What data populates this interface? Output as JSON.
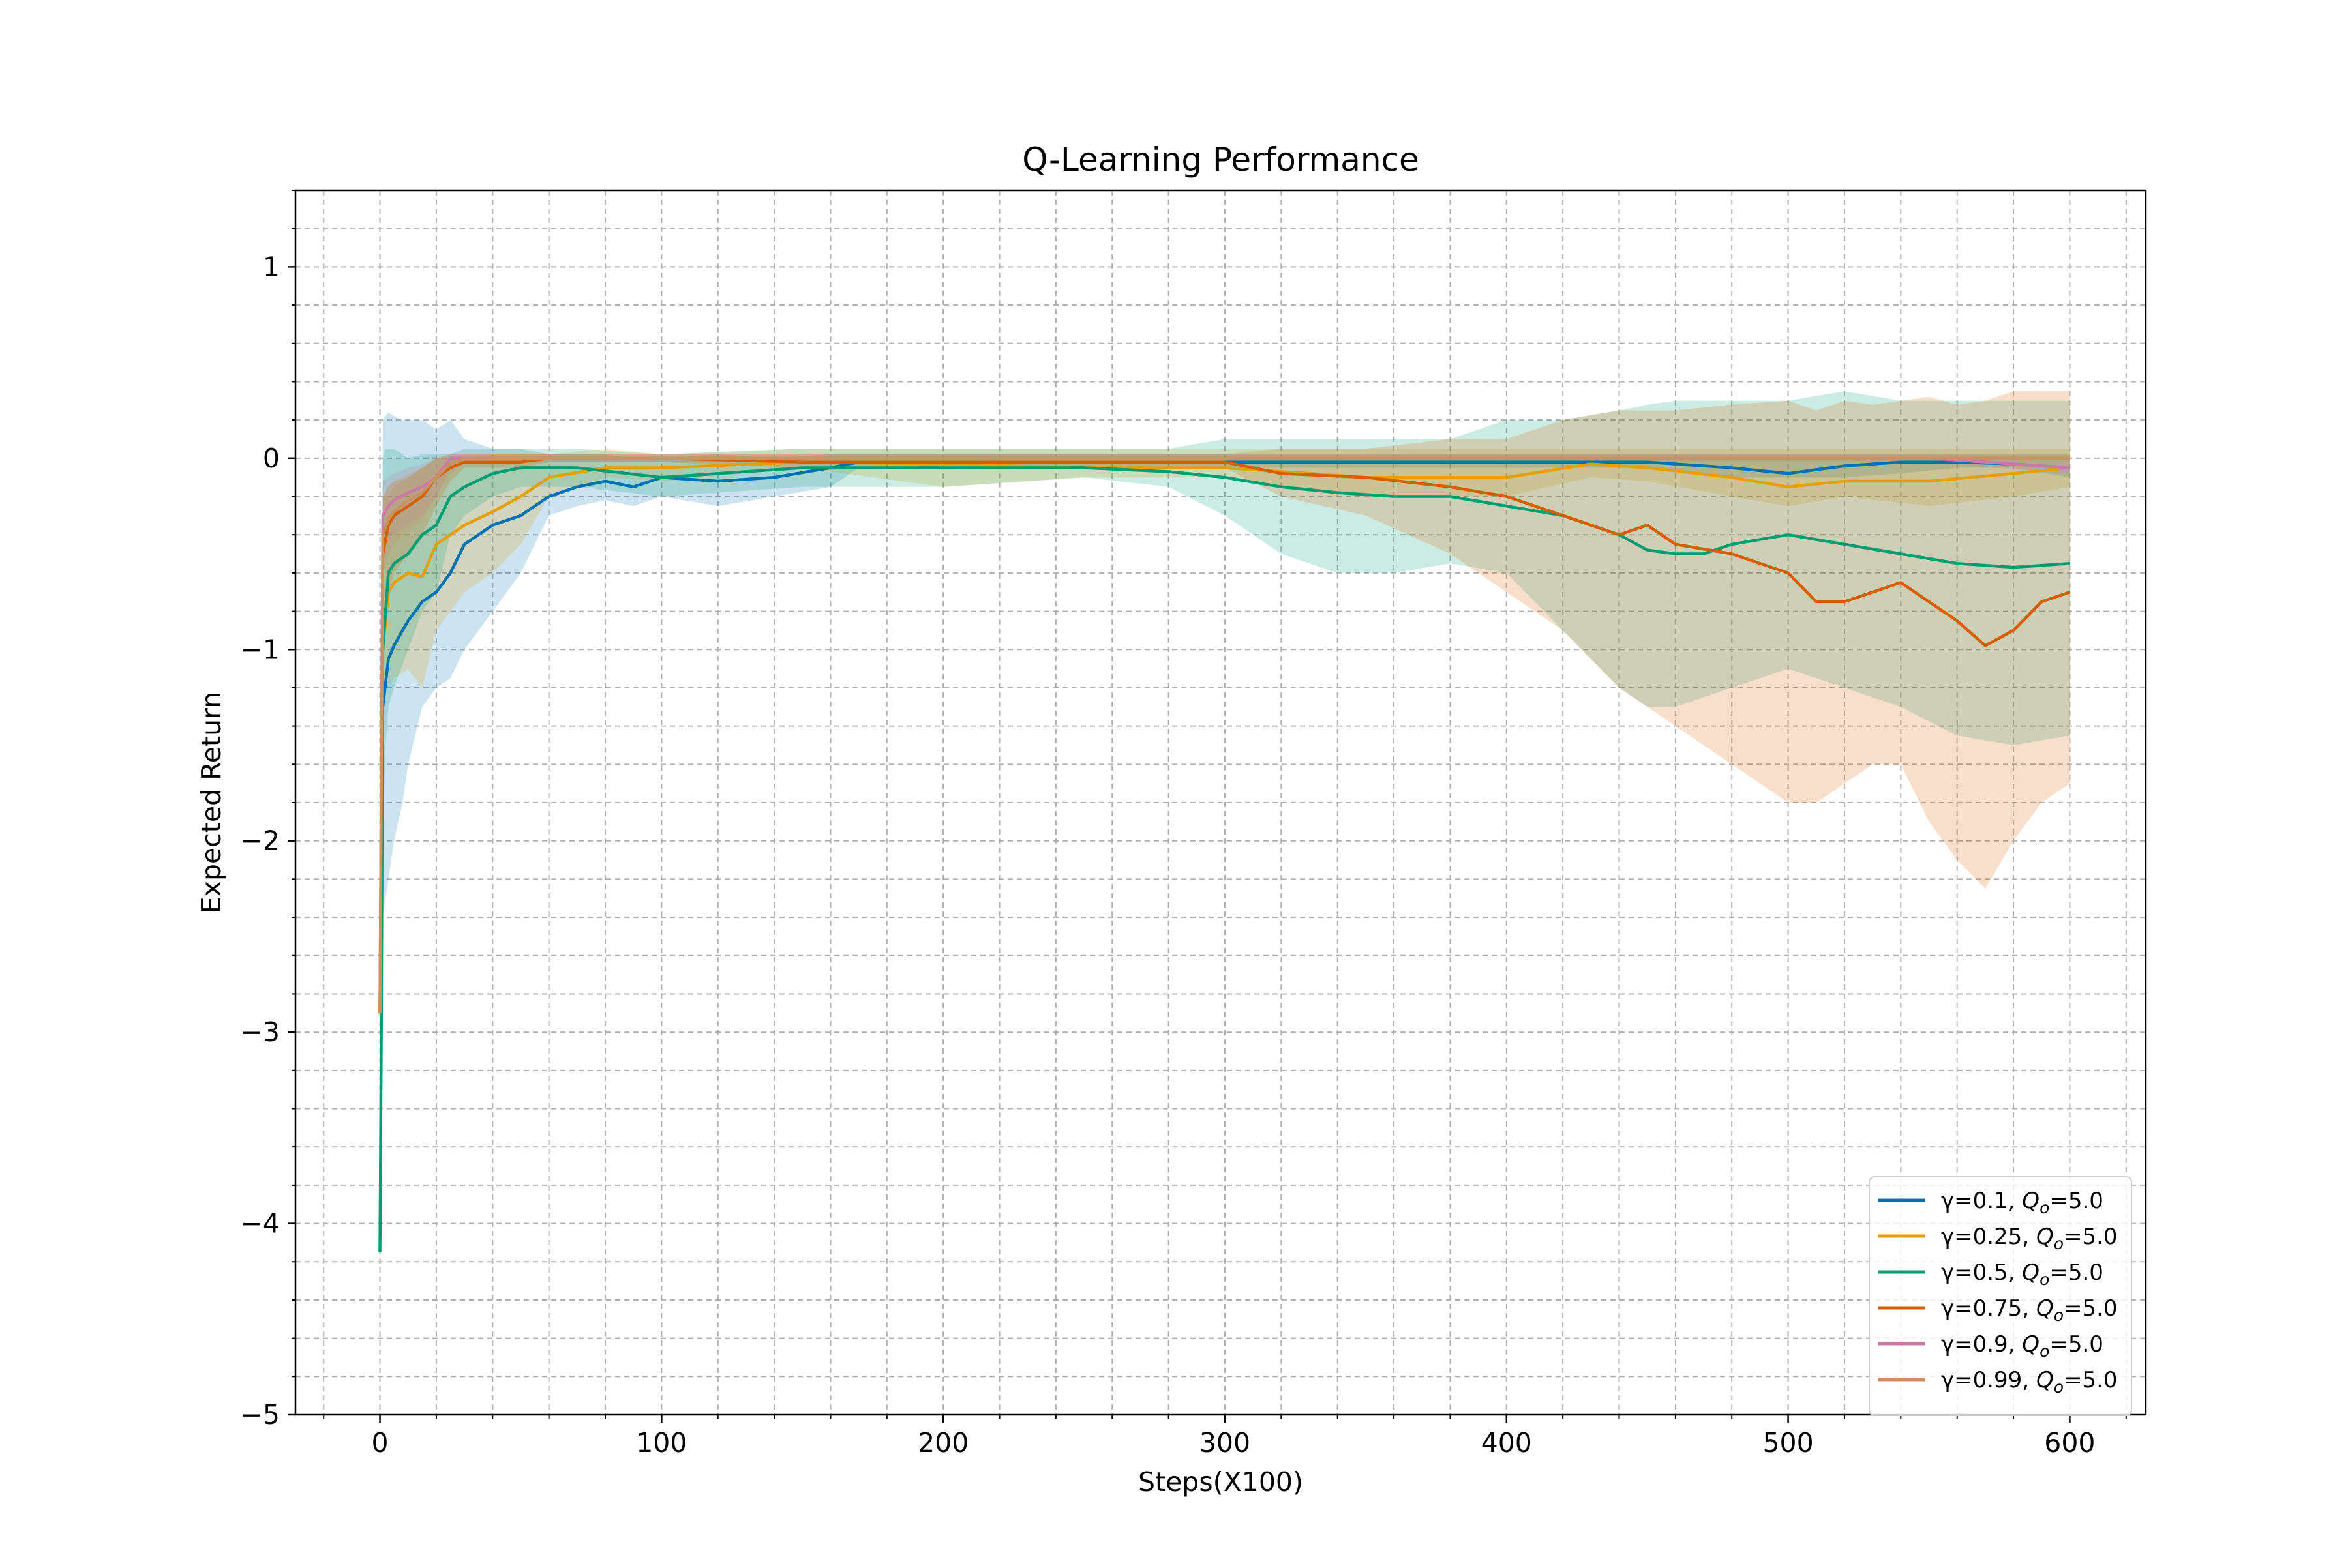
{
  "chart_data": {
    "type": "line",
    "title": "Q-Learning Performance",
    "xlabel": "Steps(X100)",
    "ylabel": "Expected Return",
    "xlim": [
      -30,
      627
    ],
    "ylim": [
      -5,
      1.4
    ],
    "xticks": [
      0,
      100,
      200,
      300,
      400,
      500,
      600
    ],
    "yticks": [
      1,
      0,
      -1,
      -2,
      -3,
      -4,
      -5
    ],
    "xtick_labels": [
      "0",
      "100",
      "200",
      "300",
      "400",
      "500",
      "600"
    ],
    "ytick_labels": [
      "1",
      "0",
      "−1",
      "−2",
      "−3",
      "−4",
      "−5"
    ],
    "grid": true,
    "minor_grid": true,
    "legend_position": "lower right",
    "series": [
      {
        "name": "γ=0.1, Qo=5.0",
        "legend_prefix": "γ=0.1, ",
        "legend_q": "Q",
        "legend_sub": "o",
        "legend_suffix": "=5.0",
        "color": "#0072b2",
        "x": [
          0,
          1,
          3,
          5,
          8,
          10,
          15,
          20,
          25,
          30,
          40,
          50,
          60,
          70,
          80,
          90,
          100,
          120,
          140,
          160,
          170,
          180,
          200,
          250,
          300,
          350,
          400,
          450,
          480,
          500,
          520,
          540,
          560,
          580,
          600
        ],
        "y": [
          -2.9,
          -1.3,
          -1.05,
          -0.98,
          -0.9,
          -0.85,
          -0.75,
          -0.7,
          -0.6,
          -0.45,
          -0.35,
          -0.3,
          -0.2,
          -0.15,
          -0.12,
          -0.15,
          -0.1,
          -0.12,
          -0.1,
          -0.05,
          -0.02,
          -0.02,
          -0.02,
          -0.02,
          -0.02,
          -0.02,
          -0.02,
          -0.02,
          -0.05,
          -0.08,
          -0.04,
          -0.02,
          -0.02,
          -0.03,
          -0.05
        ],
        "lower": [
          -2.9,
          -2.4,
          -2.2,
          -2.0,
          -1.8,
          -1.6,
          -1.3,
          -1.2,
          -1.15,
          -1.0,
          -0.8,
          -0.6,
          -0.3,
          -0.25,
          -0.22,
          -0.25,
          -0.2,
          -0.25,
          -0.2,
          -0.15,
          -0.05,
          -0.05,
          -0.05,
          -0.05,
          -0.05,
          -0.05,
          -0.05,
          -0.05,
          -0.1,
          -0.1,
          -0.1,
          -0.08,
          -0.05,
          -0.05,
          -0.1
        ],
        "upper": [
          -2.9,
          0.2,
          0.24,
          0.22,
          0.2,
          0.2,
          0.2,
          0.15,
          0.2,
          0.1,
          0.05,
          0.05,
          0.02,
          0.02,
          0.02,
          0.0,
          0.0,
          0.02,
          0.0,
          0.02,
          0.02,
          0.02,
          0.02,
          0.02,
          0.02,
          0.02,
          0.02,
          0.02,
          0.02,
          0.02,
          0.02,
          0.02,
          0.02,
          0.02,
          0.02
        ]
      },
      {
        "name": "γ=0.25, Qo=5.0",
        "legend_prefix": "γ=0.25, ",
        "legend_q": "Q",
        "legend_sub": "o",
        "legend_suffix": "=5.0",
        "color": "#e69f00",
        "x": [
          0,
          1,
          3,
          5,
          10,
          15,
          20,
          30,
          40,
          50,
          60,
          80,
          100,
          150,
          200,
          250,
          300,
          350,
          400,
          430,
          450,
          480,
          500,
          520,
          550,
          580,
          600
        ],
        "y": [
          -2.9,
          -1.0,
          -0.7,
          -0.65,
          -0.6,
          -0.62,
          -0.45,
          -0.35,
          -0.28,
          -0.2,
          -0.1,
          -0.05,
          -0.05,
          -0.02,
          -0.03,
          -0.05,
          -0.05,
          -0.1,
          -0.1,
          -0.03,
          -0.05,
          -0.1,
          -0.15,
          -0.12,
          -0.12,
          -0.08,
          -0.05
        ],
        "lower": [
          -2.9,
          -1.2,
          -1.2,
          -1.15,
          -1.1,
          -1.2,
          -0.9,
          -0.7,
          -0.6,
          -0.45,
          -0.2,
          -0.1,
          -0.12,
          -0.05,
          -0.15,
          -0.1,
          -0.1,
          -0.2,
          -0.2,
          -0.1,
          -0.12,
          -0.2,
          -0.25,
          -0.2,
          -0.25,
          -0.2,
          -0.15
        ],
        "upper": [
          -2.9,
          -0.2,
          -0.2,
          -0.15,
          -0.1,
          -0.05,
          0.0,
          0.0,
          0.02,
          0.02,
          0.02,
          0.05,
          0.02,
          0.05,
          0.05,
          0.05,
          0.05,
          0.05,
          0.05,
          0.05,
          0.05,
          0.05,
          0.05,
          0.05,
          0.05,
          0.05,
          0.05
        ]
      },
      {
        "name": "γ=0.5, Qo=5.0",
        "legend_prefix": "γ=0.5, ",
        "legend_q": "Q",
        "legend_sub": "o",
        "legend_suffix": "=5.0",
        "color": "#009e73",
        "x": [
          0,
          0.5,
          1,
          2,
          3,
          5,
          10,
          15,
          20,
          25,
          30,
          40,
          50,
          70,
          100,
          150,
          200,
          250,
          280,
          300,
          320,
          340,
          360,
          380,
          400,
          420,
          440,
          450,
          460,
          470,
          480,
          500,
          520,
          540,
          560,
          580,
          600
        ],
        "y": [
          -4.15,
          -2.95,
          -1.0,
          -0.8,
          -0.6,
          -0.55,
          -0.5,
          -0.4,
          -0.35,
          -0.2,
          -0.15,
          -0.08,
          -0.05,
          -0.05,
          -0.1,
          -0.05,
          -0.05,
          -0.05,
          -0.07,
          -0.1,
          -0.15,
          -0.18,
          -0.2,
          -0.2,
          -0.25,
          -0.3,
          -0.4,
          -0.48,
          -0.5,
          -0.5,
          -0.45,
          -0.4,
          -0.45,
          -0.5,
          -0.55,
          -0.57,
          -0.55
        ],
        "lower": [
          -4.15,
          -2.95,
          -2.0,
          -1.5,
          -1.3,
          -1.2,
          -1.0,
          -0.8,
          -0.7,
          -0.4,
          -0.3,
          -0.2,
          -0.15,
          -0.15,
          -0.2,
          -0.15,
          -0.15,
          -0.1,
          -0.15,
          -0.3,
          -0.5,
          -0.6,
          -0.6,
          -0.55,
          -0.6,
          -0.9,
          -1.2,
          -1.3,
          -1.3,
          -1.25,
          -1.2,
          -1.1,
          -1.2,
          -1.3,
          -1.45,
          -1.5,
          -1.45
        ],
        "upper": [
          -4.15,
          -2.95,
          0.0,
          0.05,
          0.05,
          0.05,
          0.0,
          0.02,
          0.02,
          0.02,
          0.05,
          0.05,
          0.05,
          0.05,
          0.02,
          0.05,
          0.05,
          0.05,
          0.05,
          0.1,
          0.1,
          0.1,
          0.1,
          0.1,
          0.2,
          0.2,
          0.25,
          0.28,
          0.3,
          0.3,
          0.3,
          0.3,
          0.35,
          0.3,
          0.3,
          0.3,
          0.3
        ]
      },
      {
        "name": "γ=0.75, Qo=5.0",
        "legend_prefix": "γ=0.75, ",
        "legend_q": "Q",
        "legend_sub": "o",
        "legend_suffix": "=5.0",
        "color": "#d55e00",
        "x": [
          0,
          1,
          3,
          5,
          10,
          15,
          20,
          25,
          30,
          40,
          50,
          60,
          100,
          150,
          200,
          250,
          300,
          320,
          350,
          380,
          400,
          420,
          440,
          450,
          460,
          480,
          500,
          510,
          520,
          530,
          540,
          550,
          560,
          570,
          580,
          590,
          600
        ],
        "y": [
          -2.9,
          -0.5,
          -0.35,
          -0.3,
          -0.25,
          -0.2,
          -0.1,
          -0.05,
          -0.02,
          -0.02,
          -0.02,
          0.0,
          0.0,
          -0.02,
          -0.02,
          -0.02,
          -0.02,
          -0.08,
          -0.1,
          -0.15,
          -0.2,
          -0.3,
          -0.4,
          -0.35,
          -0.45,
          -0.5,
          -0.6,
          -0.75,
          -0.75,
          -0.7,
          -0.65,
          -0.75,
          -0.85,
          -0.98,
          -0.9,
          -0.75,
          -0.7
        ],
        "lower": [
          -2.9,
          -0.9,
          -0.7,
          -0.6,
          -0.5,
          -0.4,
          -0.25,
          -0.12,
          -0.05,
          -0.05,
          -0.05,
          -0.02,
          -0.02,
          -0.05,
          -0.05,
          -0.05,
          -0.05,
          -0.2,
          -0.3,
          -0.5,
          -0.7,
          -0.9,
          -1.2,
          -1.3,
          -1.4,
          -1.6,
          -1.8,
          -1.8,
          -1.7,
          -1.6,
          -1.6,
          -1.9,
          -2.1,
          -2.25,
          -2.0,
          -1.8,
          -1.7
        ],
        "upper": [
          -2.9,
          -0.2,
          -0.15,
          -0.12,
          -0.1,
          -0.05,
          0.0,
          0.02,
          0.02,
          0.02,
          0.02,
          0.02,
          0.02,
          0.02,
          0.02,
          0.02,
          0.02,
          0.05,
          0.05,
          0.1,
          0.1,
          0.2,
          0.25,
          0.25,
          0.25,
          0.28,
          0.3,
          0.25,
          0.3,
          0.28,
          0.3,
          0.32,
          0.28,
          0.3,
          0.35,
          0.35,
          0.35
        ]
      },
      {
        "name": "γ=0.9, Qo=5.0",
        "legend_prefix": "γ=0.9, ",
        "legend_q": "Q",
        "legend_sub": "o",
        "legend_suffix": "=5.0",
        "color": "#cc79a7",
        "x": [
          0,
          1,
          3,
          5,
          10,
          15,
          20,
          25,
          30,
          50,
          100,
          200,
          300,
          400,
          500,
          550,
          580,
          600
        ],
        "y": [
          -2.9,
          -0.3,
          -0.25,
          -0.22,
          -0.18,
          -0.15,
          -0.1,
          0.0,
          0.0,
          0.0,
          0.0,
          0.0,
          0.0,
          0.0,
          0.0,
          0.0,
          -0.03,
          -0.05
        ],
        "lower": [
          -2.9,
          -0.5,
          -0.45,
          -0.4,
          -0.35,
          -0.3,
          -0.2,
          -0.05,
          -0.02,
          -0.02,
          -0.02,
          -0.02,
          -0.02,
          -0.02,
          -0.02,
          -0.02,
          -0.06,
          -0.08
        ],
        "upper": [
          -2.9,
          -0.12,
          -0.1,
          -0.08,
          -0.05,
          -0.03,
          0.0,
          0.02,
          0.02,
          0.02,
          0.02,
          0.02,
          0.02,
          0.02,
          0.02,
          0.02,
          0.01,
          0.0
        ]
      },
      {
        "name": "γ=0.99, Qo=5.0",
        "legend_prefix": "γ=0.99, ",
        "legend_q": "Q",
        "legend_sub": "o",
        "legend_suffix": "=5.0",
        "color": "#ca9161",
        "x": [
          0,
          1,
          3,
          5,
          10,
          15,
          20,
          25,
          30,
          50,
          100,
          200,
          300,
          400,
          500,
          600
        ],
        "y": [
          -2.9,
          -0.4,
          -0.32,
          -0.28,
          -0.22,
          -0.18,
          -0.1,
          -0.03,
          0.0,
          0.0,
          0.0,
          0.0,
          0.0,
          0.0,
          0.0,
          0.0
        ],
        "lower": [
          -2.9,
          -0.6,
          -0.5,
          -0.45,
          -0.38,
          -0.32,
          -0.2,
          -0.08,
          -0.02,
          -0.02,
          -0.02,
          -0.02,
          -0.02,
          -0.02,
          -0.02,
          -0.02
        ],
        "upper": [
          -2.9,
          -0.2,
          -0.15,
          -0.12,
          -0.08,
          -0.05,
          0.0,
          0.02,
          0.02,
          0.02,
          0.02,
          0.02,
          0.02,
          0.02,
          0.02,
          0.02
        ]
      }
    ]
  }
}
